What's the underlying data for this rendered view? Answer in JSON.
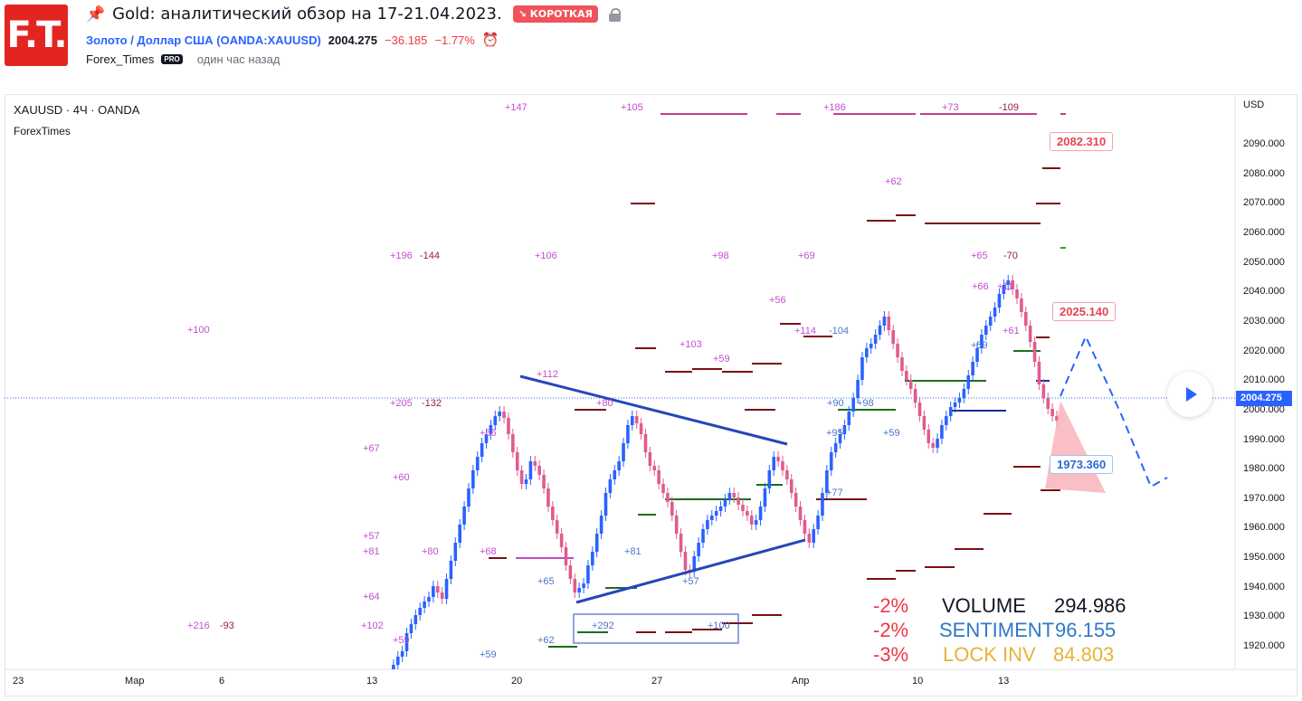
{
  "header": {
    "logo_text": "F.T.",
    "title": "Gold: аналитический обзор на 17-21.04.2023.",
    "badge": "↘ КОРОТКАЯ",
    "symbol_link": "Золото / Доллар США",
    "symbol_code": "(OANDA:XAUUSD)",
    "price": "2004.275",
    "change": "−36.185",
    "change_pct": "−1.77%",
    "author": "Forex_Times",
    "author_badge": "PRO",
    "time_ago": "один час назад"
  },
  "chart": {
    "symbol_title": "XAUUSD · 4Ч · OANDA",
    "indicator": "ForexTimes",
    "currency": "USD",
    "current_price": "2004.275",
    "price_axis": [
      "2090.000",
      "2080.000",
      "2070.000",
      "2060.000",
      "2050.000",
      "2040.000",
      "2030.000",
      "2020.000",
      "2010.000",
      "2000.000",
      "1990.000",
      "1980.000",
      "1970.000",
      "1960.000",
      "1950.000",
      "1940.000",
      "1930.000",
      "1920.000"
    ],
    "time_axis": [
      "23",
      "Мар",
      "6",
      "13",
      "20",
      "27",
      "Апр",
      "10",
      "13"
    ],
    "labels": {
      "target_high": "2082.310",
      "target_mid": "2025.140",
      "target_low": "1973.360"
    },
    "level_tags": [
      {
        "t": "+147",
        "c": "#c34fcf"
      },
      {
        "t": "+105",
        "c": "#c34fcf"
      },
      {
        "t": "+186",
        "c": "#c34fcf"
      },
      {
        "t": "+73",
        "c": "#c34fcf"
      },
      {
        "t": "-109",
        "c": "#8e1f4a"
      },
      {
        "t": "+62",
        "c": "#c34fcf"
      },
      {
        "t": "+196",
        "c": "#c34fcf"
      },
      {
        "t": "-144",
        "c": "#8e1f4a"
      },
      {
        "t": "+106",
        "c": "#c34fcf"
      },
      {
        "t": "+98",
        "c": "#c34fcf"
      },
      {
        "t": "+69",
        "c": "#c34fcf"
      },
      {
        "t": "+65",
        "c": "#c34fcf"
      },
      {
        "t": "-70",
        "c": "#8e1f4a"
      },
      {
        "t": "+66",
        "c": "#c34fcf"
      },
      {
        "t": "+11",
        "c": "#c34fcf"
      },
      {
        "t": "+56",
        "c": "#c34fcf"
      },
      {
        "t": "+100",
        "c": "#c34fcf"
      },
      {
        "t": "+114",
        "c": "#c34fcf"
      },
      {
        "t": "-104",
        "c": "#4a76c7"
      },
      {
        "t": "+103",
        "c": "#c34fcf"
      },
      {
        "t": "+59",
        "c": "#c34fcf"
      },
      {
        "t": "+59",
        "c": "#4a76c7"
      },
      {
        "t": "+61",
        "c": "#c34fcf"
      },
      {
        "t": "+112",
        "c": "#c34fcf"
      },
      {
        "t": "+205",
        "c": "#c34fcf"
      },
      {
        "t": "-132",
        "c": "#8e1f4a"
      },
      {
        "t": "+80",
        "c": "#c34fcf"
      },
      {
        "t": "+90",
        "c": "#4a76c7"
      },
      {
        "t": "+98",
        "c": "#4a76c7"
      },
      {
        "t": "+66",
        "c": "#c34fcf"
      },
      {
        "t": "+67",
        "c": "#c34fcf"
      },
      {
        "t": "+95",
        "c": "#4a76c7"
      },
      {
        "t": "+59",
        "c": "#4a76c7"
      },
      {
        "t": "+60",
        "c": "#c34fcf"
      },
      {
        "t": "+77",
        "c": "#4a76c7"
      },
      {
        "t": "+57",
        "c": "#c34fcf"
      },
      {
        "t": "+81",
        "c": "#c34fcf"
      },
      {
        "t": "+80",
        "c": "#c34fcf"
      },
      {
        "t": "+68",
        "c": "#c34fcf"
      },
      {
        "t": "+81",
        "c": "#4a76c7"
      },
      {
        "t": "+65",
        "c": "#4a76c7"
      },
      {
        "t": "+57",
        "c": "#4a76c7"
      },
      {
        "t": "+64",
        "c": "#c34fcf"
      },
      {
        "t": "+216",
        "c": "#c34fcf"
      },
      {
        "t": "-93",
        "c": "#8e1f4a"
      },
      {
        "t": "+102",
        "c": "#c34fcf"
      },
      {
        "t": "+292",
        "c": "#4a76c7"
      },
      {
        "t": "+100",
        "c": "#4a76c7"
      },
      {
        "t": "+59",
        "c": "#c34fcf"
      },
      {
        "t": "+62",
        "c": "#4a76c7"
      },
      {
        "t": "+59",
        "c": "#4a76c7"
      }
    ],
    "stats": {
      "volume_pct": "-2%",
      "volume_label": "VOLUME",
      "volume_value": "294.986",
      "sentiment_pct": "-2%",
      "sentiment_label": "SENTIMENT",
      "sentiment_value": "96.155",
      "lock_pct": "-3%",
      "lock_label": "LOCK INV",
      "lock_value": "84.803"
    },
    "colors": {
      "up": "#2962ff",
      "down": "#e05b8f",
      "triangle": "#2746b8",
      "support": "#1b6e1b",
      "resistance": "#7a0f18",
      "accent_red": "#f23645",
      "stat_blue": "#2f78c8",
      "stat_yellow": "#e8b23a"
    }
  }
}
